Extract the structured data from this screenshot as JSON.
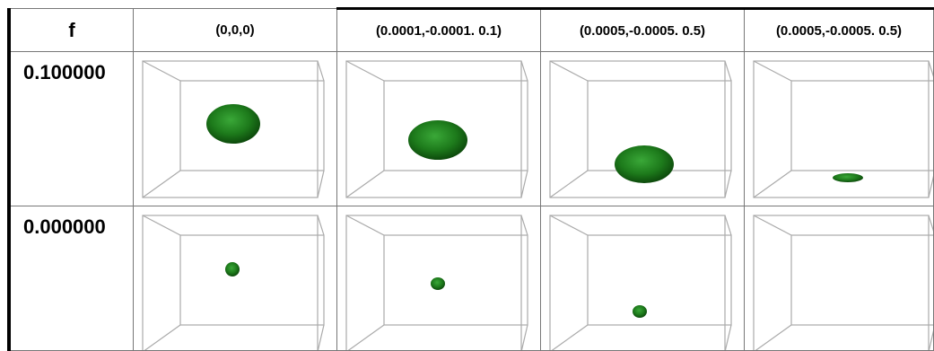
{
  "table": {
    "header": [
      "f",
      "(0,0,0)",
      "(0.0001,-0.0001. 0.1)",
      "(0.0005,-0.0005. 0.5)",
      "(0.0005,-0.0005. 0.5)"
    ],
    "rows": [
      [
        "0.100000"
      ],
      [
        "0.000000"
      ]
    ]
  }
}
